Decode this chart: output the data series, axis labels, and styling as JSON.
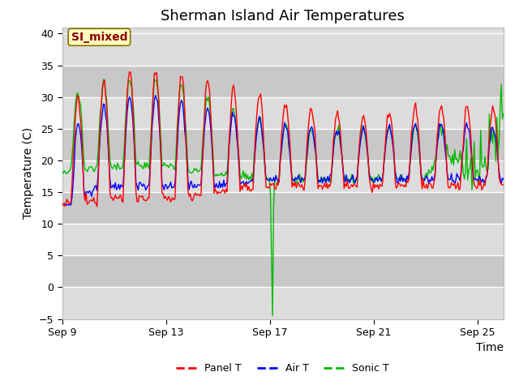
{
  "title": "Sherman Island Air Temperatures",
  "xlabel": "Time",
  "ylabel": "Temperature (C)",
  "ylim": [
    -5,
    41
  ],
  "yticks": [
    -5,
    0,
    5,
    10,
    15,
    20,
    25,
    30,
    35,
    40
  ],
  "xtick_labels": [
    "Sep 9",
    "Sep 13",
    "Sep 17",
    "Sep 21",
    "Sep 25"
  ],
  "xtick_positions": [
    0,
    4,
    8,
    12,
    16
  ],
  "annotation_text": "SI_mixed",
  "annotation_color": "#8B0000",
  "annotation_bg": "#FFFFC0",
  "line_colors": {
    "panel": "#FF0000",
    "air": "#0000FF",
    "sonic": "#00BB00"
  },
  "legend_labels": [
    "Panel T",
    "Air T",
    "Sonic T"
  ],
  "bg_light": "#DCDCDC",
  "bg_dark": "#C8C8C8",
  "grid_color": "#FFFFFF",
  "title_fontsize": 13,
  "axis_label_fontsize": 10,
  "tick_fontsize": 9
}
